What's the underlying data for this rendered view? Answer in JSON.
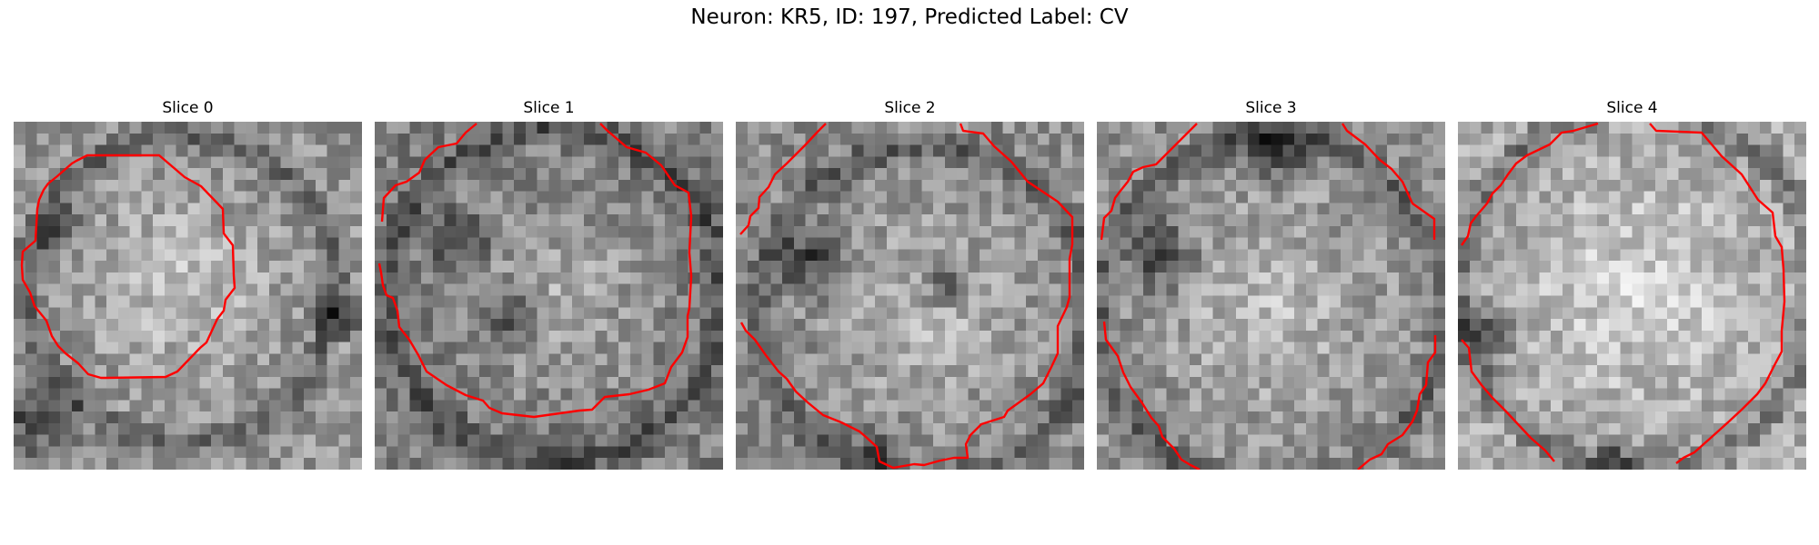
{
  "figure": {
    "title": "Neuron: KR5, ID: 197, Predicted Label: CV",
    "contour_color": "#ff0000",
    "colormap": "grayscale"
  },
  "slices": [
    {
      "title": "Slice 0"
    },
    {
      "title": "Slice 1"
    },
    {
      "title": "Slice 2"
    },
    {
      "title": "Slice 3"
    },
    {
      "title": "Slice 4"
    }
  ]
}
